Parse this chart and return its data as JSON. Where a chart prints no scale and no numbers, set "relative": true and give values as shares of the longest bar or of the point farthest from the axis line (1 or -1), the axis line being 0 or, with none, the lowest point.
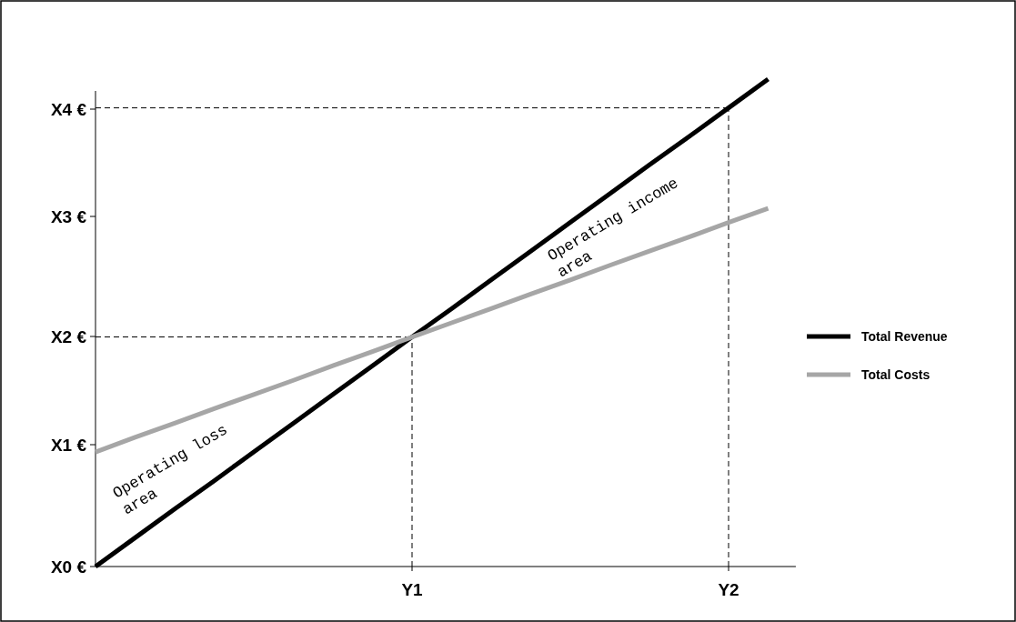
{
  "chart_data": {
    "type": "line",
    "relative": true,
    "categories": [
      null,
      null,
      null,
      null,
      null,
      null,
      null,
      null,
      "Y1",
      null,
      null,
      null,
      null,
      null,
      null,
      null,
      "Y2",
      null
    ],
    "series": [
      {
        "name": "Total Revenue",
        "color": "#000000",
        "values": [
          0,
          0.059,
          0.118,
          0.176,
          0.235,
          0.294,
          0.353,
          0.412,
          0.471,
          0.529,
          0.588,
          0.647,
          0.706,
          0.765,
          0.824,
          0.882,
          0.941,
          1
        ]
      },
      {
        "name": "Total Costs",
        "color": "#a6a6a6",
        "values": [
          0.235,
          0.265,
          0.294,
          0.324,
          0.353,
          0.382,
          0.412,
          0.441,
          0.471,
          0.5,
          0.529,
          0.559,
          0.588,
          0.618,
          0.647,
          0.676,
          0.706,
          0.735
        ]
      }
    ],
    "ref_lines": [
      {
        "axis": "y",
        "value": 0.471,
        "line_style": "dashed",
        "color": "#000000"
      },
      {
        "axis": "y",
        "value": 0.941,
        "line_style": "dashed",
        "color": "#000000"
      },
      {
        "axis": "x",
        "value": "Y1",
        "line_style": "dashed",
        "color": "#000000"
      },
      {
        "axis": "x",
        "value": "Y2",
        "line_style": "dashed",
        "color": "#000000"
      }
    ],
    "annotations": [
      "X0 €",
      "X1 €",
      "X2 €",
      "X3 €",
      "X4 €",
      "Operating loss area",
      "Operating income area"
    ],
    "legend": "right",
    "line_style": "solid"
  }
}
